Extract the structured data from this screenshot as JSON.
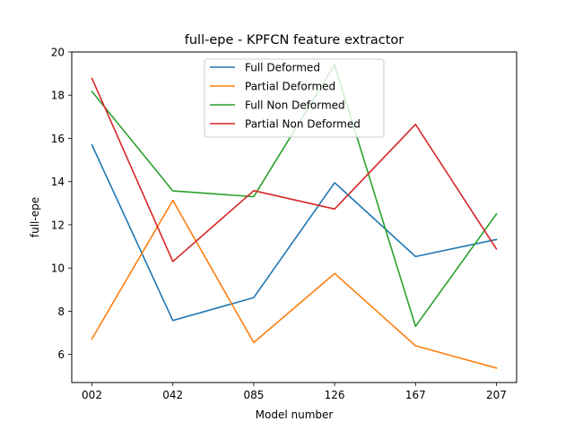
{
  "chart_data": {
    "type": "line",
    "title": "full-epe - KPFCN feature extractor",
    "xlabel": "Model number",
    "ylabel": "full-epe",
    "categories": [
      "002",
      "042",
      "085",
      "126",
      "167",
      "207"
    ],
    "ylim": [
      4.7,
      20.0
    ],
    "yticks": [
      6,
      8,
      10,
      12,
      14,
      16,
      18,
      20
    ],
    "grid": false,
    "legend_position": "top-center",
    "series": [
      {
        "name": "Full Deformed",
        "color": "#1f77b4",
        "values": [
          15.7,
          7.57,
          8.63,
          13.95,
          10.53,
          11.32
        ]
      },
      {
        "name": "Partial Deformed",
        "color": "#ff7f0e",
        "values": [
          6.72,
          13.13,
          6.55,
          9.75,
          6.4,
          5.37
        ]
      },
      {
        "name": "Full Non Deformed",
        "color": "#2ca02c",
        "values": [
          18.17,
          13.57,
          13.3,
          19.4,
          7.3,
          12.5
        ]
      },
      {
        "name": "Partial Non Deformed",
        "color": "#d62728",
        "values": [
          18.78,
          10.3,
          13.58,
          12.73,
          16.65,
          10.88
        ]
      }
    ]
  }
}
